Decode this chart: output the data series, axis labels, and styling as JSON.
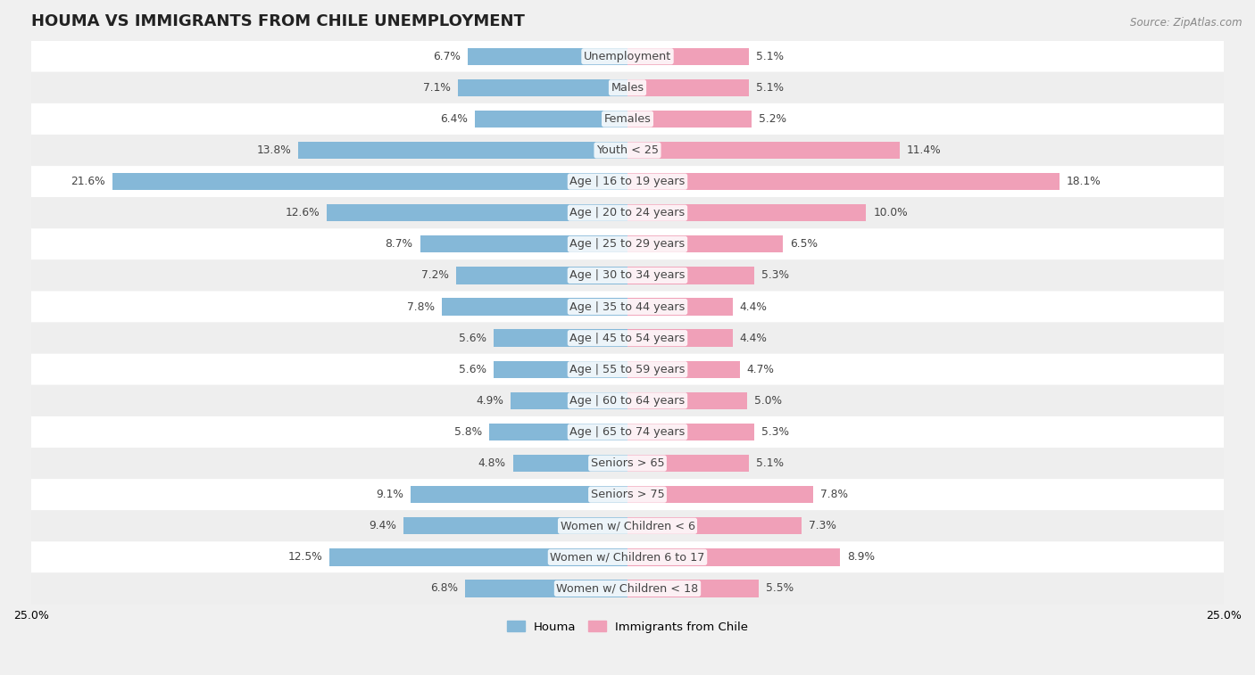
{
  "title": "HOUMA VS IMMIGRANTS FROM CHILE UNEMPLOYMENT",
  "source": "Source: ZipAtlas.com",
  "categories": [
    "Unemployment",
    "Males",
    "Females",
    "Youth < 25",
    "Age | 16 to 19 years",
    "Age | 20 to 24 years",
    "Age | 25 to 29 years",
    "Age | 30 to 34 years",
    "Age | 35 to 44 years",
    "Age | 45 to 54 years",
    "Age | 55 to 59 years",
    "Age | 60 to 64 years",
    "Age | 65 to 74 years",
    "Seniors > 65",
    "Seniors > 75",
    "Women w/ Children < 6",
    "Women w/ Children 6 to 17",
    "Women w/ Children < 18"
  ],
  "houma_values": [
    6.7,
    7.1,
    6.4,
    13.8,
    21.6,
    12.6,
    8.7,
    7.2,
    7.8,
    5.6,
    5.6,
    4.9,
    5.8,
    4.8,
    9.1,
    9.4,
    12.5,
    6.8
  ],
  "chile_values": [
    5.1,
    5.1,
    5.2,
    11.4,
    18.1,
    10.0,
    6.5,
    5.3,
    4.4,
    4.4,
    4.7,
    5.0,
    5.3,
    5.1,
    7.8,
    7.3,
    8.9,
    5.5
  ],
  "houma_color": "#85b8d8",
  "chile_color": "#f0a0b8",
  "houma_label": "Houma",
  "chile_label": "Immigrants from Chile",
  "xlim": 25.0,
  "bar_height": 0.55,
  "row_bg_color": "#e8e8e8",
  "outer_bg_color": "#f0f0f0",
  "title_fontsize": 13,
  "label_fontsize": 9.2,
  "value_fontsize": 8.8
}
